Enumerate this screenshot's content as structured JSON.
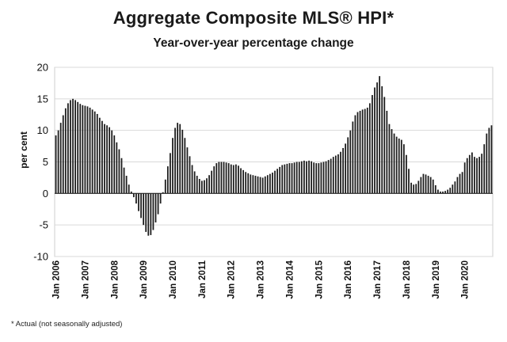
{
  "chart_data": {
    "type": "bar",
    "title": "Aggregate Composite MLS® HPI*",
    "subtitle": "Year-over-year percentage change",
    "ylabel": "per cent",
    "xlabel": "",
    "ylim": [
      -10,
      20
    ],
    "yticks": [
      -10,
      -5,
      0,
      5,
      10,
      15,
      20
    ],
    "grid": true,
    "xtick_labels": [
      "Jan 2006",
      "Jan 2007",
      "Jan 2008",
      "Jan 2009",
      "Jan 2010",
      "Jan 2011",
      "Jan 2012",
      "Jan 2013",
      "Jan 2014",
      "Jan 2015",
      "Jan 2016",
      "Jan 2017",
      "Jan 2018",
      "Jan 2019",
      "Jan 2020"
    ],
    "start": "Jan 2006",
    "frequency": "monthly",
    "series": [
      {
        "name": "Aggregate Composite MLS HPI y/y % change",
        "values": [
          9.2,
          10.0,
          11.2,
          12.4,
          13.5,
          14.3,
          14.8,
          15.0,
          14.8,
          14.5,
          14.2,
          14.0,
          13.9,
          13.8,
          13.6,
          13.3,
          13.0,
          12.6,
          12.0,
          11.5,
          11.0,
          10.8,
          10.5,
          10.0,
          9.2,
          8.1,
          7.0,
          5.6,
          4.1,
          2.8,
          1.4,
          0.3,
          -0.6,
          -1.6,
          -2.8,
          -3.9,
          -5.0,
          -6.1,
          -6.7,
          -6.6,
          -5.8,
          -4.6,
          -3.3,
          -1.6,
          0.2,
          2.2,
          4.3,
          6.4,
          8.8,
          10.4,
          11.2,
          11.0,
          10.1,
          8.8,
          7.3,
          5.9,
          4.5,
          3.5,
          2.8,
          2.3,
          2.0,
          2.1,
          2.4,
          2.9,
          3.6,
          4.3,
          4.8,
          5.0,
          5.0,
          5.0,
          4.9,
          4.8,
          4.6,
          4.5,
          4.6,
          4.4,
          4.0,
          3.7,
          3.4,
          3.2,
          3.0,
          2.9,
          2.8,
          2.7,
          2.6,
          2.5,
          2.7,
          2.9,
          3.1,
          3.3,
          3.6,
          3.9,
          4.2,
          4.5,
          4.6,
          4.7,
          4.8,
          4.8,
          4.9,
          5.0,
          5.0,
          5.1,
          5.2,
          5.1,
          5.2,
          5.1,
          4.9,
          4.8,
          4.8,
          4.9,
          5.0,
          5.1,
          5.3,
          5.5,
          5.8,
          6.0,
          6.2,
          6.6,
          7.2,
          7.9,
          8.9,
          10.0,
          11.4,
          12.4,
          12.9,
          13.1,
          13.3,
          13.4,
          13.6,
          14.3,
          15.6,
          16.8,
          17.6,
          18.6,
          17.0,
          15.3,
          13.1,
          11.0,
          10.2,
          9.5,
          9.0,
          8.7,
          8.5,
          7.8,
          6.1,
          3.9,
          1.7,
          1.4,
          1.5,
          2.0,
          2.6,
          3.1,
          3.0,
          2.8,
          2.6,
          2.2,
          1.3,
          0.6,
          0.3,
          0.3,
          0.4,
          0.6,
          0.9,
          1.4,
          1.9,
          2.6,
          3.1,
          3.4,
          4.9,
          5.6,
          6.1,
          6.5,
          5.8,
          5.6,
          5.8,
          6.3,
          7.8,
          9.5,
          10.4,
          10.8
        ]
      }
    ]
  },
  "footnote": "* Actual (not seasonally adjusted)"
}
